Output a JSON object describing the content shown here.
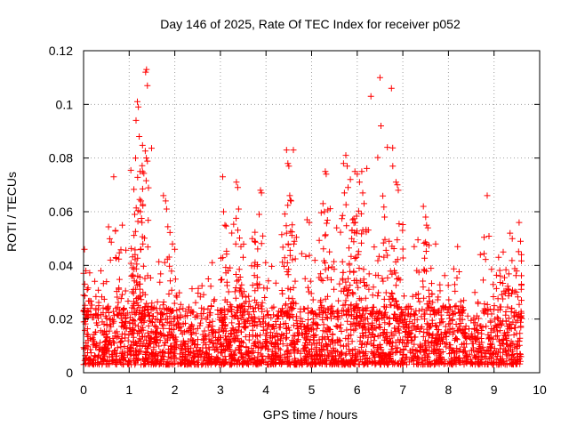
{
  "chart_data": {
    "type": "scatter",
    "title": "Day 146 of 2025, Rate Of TEC Index for receiver p052",
    "xlabel": "GPS time / hours",
    "ylabel": "ROTI / TECUs",
    "xlim": [
      0,
      10
    ],
    "ylim": [
      0,
      0.12
    ],
    "xticks": [
      "0",
      "1",
      "2",
      "3",
      "4",
      "5",
      "6",
      "7",
      "8",
      "9",
      "10"
    ],
    "yticks": [
      "0",
      "0.02",
      "0.04",
      "0.06",
      "0.08",
      "0.1",
      "0.12"
    ],
    "grid": true,
    "marker": "+",
    "color": "#ff0000",
    "series": [
      {
        "name": "p052",
        "x_range": [
          0.0,
          9.6
        ],
        "typical_range": [
          0.003,
          0.025
        ],
        "peaks": [
          {
            "x": 0.02,
            "y": 0.046
          },
          {
            "x": 0.05,
            "y": 0.038
          },
          {
            "x": 0.08,
            "y": 0.031
          },
          {
            "x": 0.38,
            "y": 0.038
          },
          {
            "x": 0.66,
            "y": 0.073
          },
          {
            "x": 0.7,
            "y": 0.053
          },
          {
            "x": 0.85,
            "y": 0.055
          },
          {
            "x": 1.05,
            "y": 0.036
          },
          {
            "x": 1.12,
            "y": 0.059
          },
          {
            "x": 1.14,
            "y": 0.08
          },
          {
            "x": 1.15,
            "y": 0.094
          },
          {
            "x": 1.18,
            "y": 0.101
          },
          {
            "x": 1.2,
            "y": 0.099
          },
          {
            "x": 1.22,
            "y": 0.088
          },
          {
            "x": 1.24,
            "y": 0.075
          },
          {
            "x": 1.26,
            "y": 0.064
          },
          {
            "x": 1.28,
            "y": 0.056
          },
          {
            "x": 1.3,
            "y": 0.048
          },
          {
            "x": 1.36,
            "y": 0.112
          },
          {
            "x": 1.38,
            "y": 0.113
          },
          {
            "x": 1.4,
            "y": 0.107
          },
          {
            "x": 1.75,
            "y": 0.066
          },
          {
            "x": 1.8,
            "y": 0.064
          },
          {
            "x": 1.82,
            "y": 0.061
          },
          {
            "x": 1.95,
            "y": 0.048
          },
          {
            "x": 2.0,
            "y": 0.046
          },
          {
            "x": 2.82,
            "y": 0.041
          },
          {
            "x": 3.05,
            "y": 0.073
          },
          {
            "x": 3.07,
            "y": 0.06
          },
          {
            "x": 3.1,
            "y": 0.055
          },
          {
            "x": 3.35,
            "y": 0.071
          },
          {
            "x": 3.38,
            "y": 0.069
          },
          {
            "x": 3.4,
            "y": 0.061
          },
          {
            "x": 3.45,
            "y": 0.047
          },
          {
            "x": 3.5,
            "y": 0.043
          },
          {
            "x": 3.7,
            "y": 0.05
          },
          {
            "x": 3.75,
            "y": 0.049
          },
          {
            "x": 3.88,
            "y": 0.068
          },
          {
            "x": 3.9,
            "y": 0.067
          },
          {
            "x": 3.85,
            "y": 0.059
          },
          {
            "x": 4.45,
            "y": 0.083
          },
          {
            "x": 4.48,
            "y": 0.078
          },
          {
            "x": 4.5,
            "y": 0.077
          },
          {
            "x": 4.52,
            "y": 0.066
          },
          {
            "x": 4.55,
            "y": 0.064
          },
          {
            "x": 4.45,
            "y": 0.052
          },
          {
            "x": 4.6,
            "y": 0.083
          },
          {
            "x": 4.9,
            "y": 0.057
          },
          {
            "x": 4.95,
            "y": 0.056
          },
          {
            "x": 5.25,
            "y": 0.063
          },
          {
            "x": 5.3,
            "y": 0.075
          },
          {
            "x": 5.32,
            "y": 0.074
          },
          {
            "x": 5.28,
            "y": 0.06
          },
          {
            "x": 5.55,
            "y": 0.054
          },
          {
            "x": 5.7,
            "y": 0.078
          },
          {
            "x": 5.75,
            "y": 0.081
          },
          {
            "x": 5.78,
            "y": 0.077
          },
          {
            "x": 5.72,
            "y": 0.067
          },
          {
            "x": 5.8,
            "y": 0.069
          },
          {
            "x": 5.85,
            "y": 0.072
          },
          {
            "x": 5.95,
            "y": 0.075
          },
          {
            "x": 6.0,
            "y": 0.074
          },
          {
            "x": 6.05,
            "y": 0.071
          },
          {
            "x": 6.1,
            "y": 0.075
          },
          {
            "x": 6.12,
            "y": 0.067
          },
          {
            "x": 6.15,
            "y": 0.063
          },
          {
            "x": 5.9,
            "y": 0.057
          },
          {
            "x": 5.88,
            "y": 0.05
          },
          {
            "x": 6.3,
            "y": 0.103
          },
          {
            "x": 6.5,
            "y": 0.11
          },
          {
            "x": 6.52,
            "y": 0.092
          },
          {
            "x": 6.6,
            "y": 0.058
          },
          {
            "x": 6.75,
            "y": 0.106
          },
          {
            "x": 6.78,
            "y": 0.077
          },
          {
            "x": 6.85,
            "y": 0.071
          },
          {
            "x": 6.88,
            "y": 0.07
          },
          {
            "x": 6.9,
            "y": 0.068
          },
          {
            "x": 6.7,
            "y": 0.049
          },
          {
            "x": 7.45,
            "y": 0.062
          },
          {
            "x": 7.5,
            "y": 0.058
          },
          {
            "x": 7.52,
            "y": 0.055
          },
          {
            "x": 7.55,
            "y": 0.054
          },
          {
            "x": 7.25,
            "y": 0.047
          },
          {
            "x": 7.72,
            "y": 0.048
          },
          {
            "x": 8.2,
            "y": 0.047
          },
          {
            "x": 8.85,
            "y": 0.066
          },
          {
            "x": 8.7,
            "y": 0.044
          },
          {
            "x": 9.35,
            "y": 0.052
          },
          {
            "x": 9.4,
            "y": 0.05
          },
          {
            "x": 9.55,
            "y": 0.056
          },
          {
            "x": 9.58,
            "y": 0.049
          },
          {
            "x": 9.6,
            "y": 0.044
          },
          {
            "x": 9.1,
            "y": 0.043
          },
          {
            "x": 9.2,
            "y": 0.045
          }
        ]
      }
    ]
  }
}
